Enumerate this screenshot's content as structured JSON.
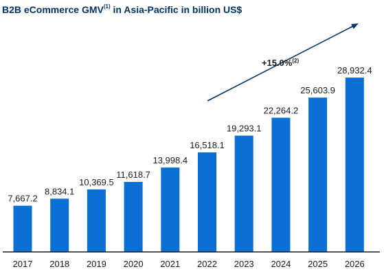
{
  "title": {
    "main": "B2B eCommerce GMV",
    "superscript": "(1)",
    "rest": " in Asia-Pacific in billion US$"
  },
  "colors": {
    "bar": "#0B6FD4",
    "title": "#003366",
    "axis": "#1a1a1a"
  },
  "annotation": {
    "label": "+15.0%",
    "superscript": "(2)"
  },
  "chart_data": {
    "type": "bar",
    "title": "B2B eCommerce GMV(1) in Asia-Pacific in billion US$",
    "categories": [
      "2017",
      "2018",
      "2019",
      "2020",
      "2021",
      "2022",
      "2023",
      "2024",
      "2025",
      "2026"
    ],
    "values": [
      7667.2,
      8834.1,
      10369.5,
      11618.7,
      13998.4,
      16518.1,
      19293.1,
      22264.2,
      25603.9,
      28932.4
    ],
    "value_labels": [
      "7,667.2",
      "8,834.1",
      "10,369.5",
      "11,618.7",
      "13,998.4",
      "16,518.1",
      "19,293.1",
      "22,264.2",
      "25,603.9",
      "28,932.4"
    ],
    "grid": false,
    "legend": "none",
    "annotations": [
      "+15.0%(2)"
    ]
  }
}
